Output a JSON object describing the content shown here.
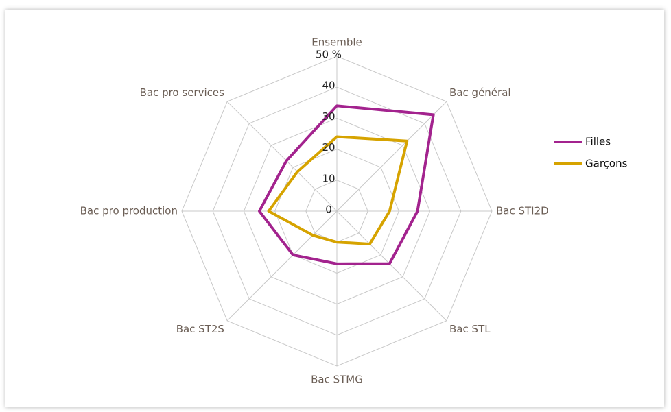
{
  "chart_data": {
    "type": "radar",
    "categories": [
      "Ensemble",
      "Bac général",
      "Bac STI2D",
      "Bac STL",
      "Bac STMG",
      "Bac ST2S",
      "Bac pro production",
      "Bac pro services"
    ],
    "series": [
      {
        "name": "Filles",
        "color": "#a3238e",
        "values": [
          34,
          44,
          26,
          24,
          17,
          20,
          25,
          23
        ]
      },
      {
        "name": "Garçons",
        "color": "#d6a300",
        "values": [
          24,
          32,
          17,
          15,
          10,
          11,
          22,
          18
        ]
      }
    ],
    "ylim": [
      0,
      50
    ],
    "yticks": [
      0,
      10,
      20,
      30,
      40,
      {
        "value": 50,
        "label": "50 %"
      }
    ],
    "legend": "right"
  }
}
